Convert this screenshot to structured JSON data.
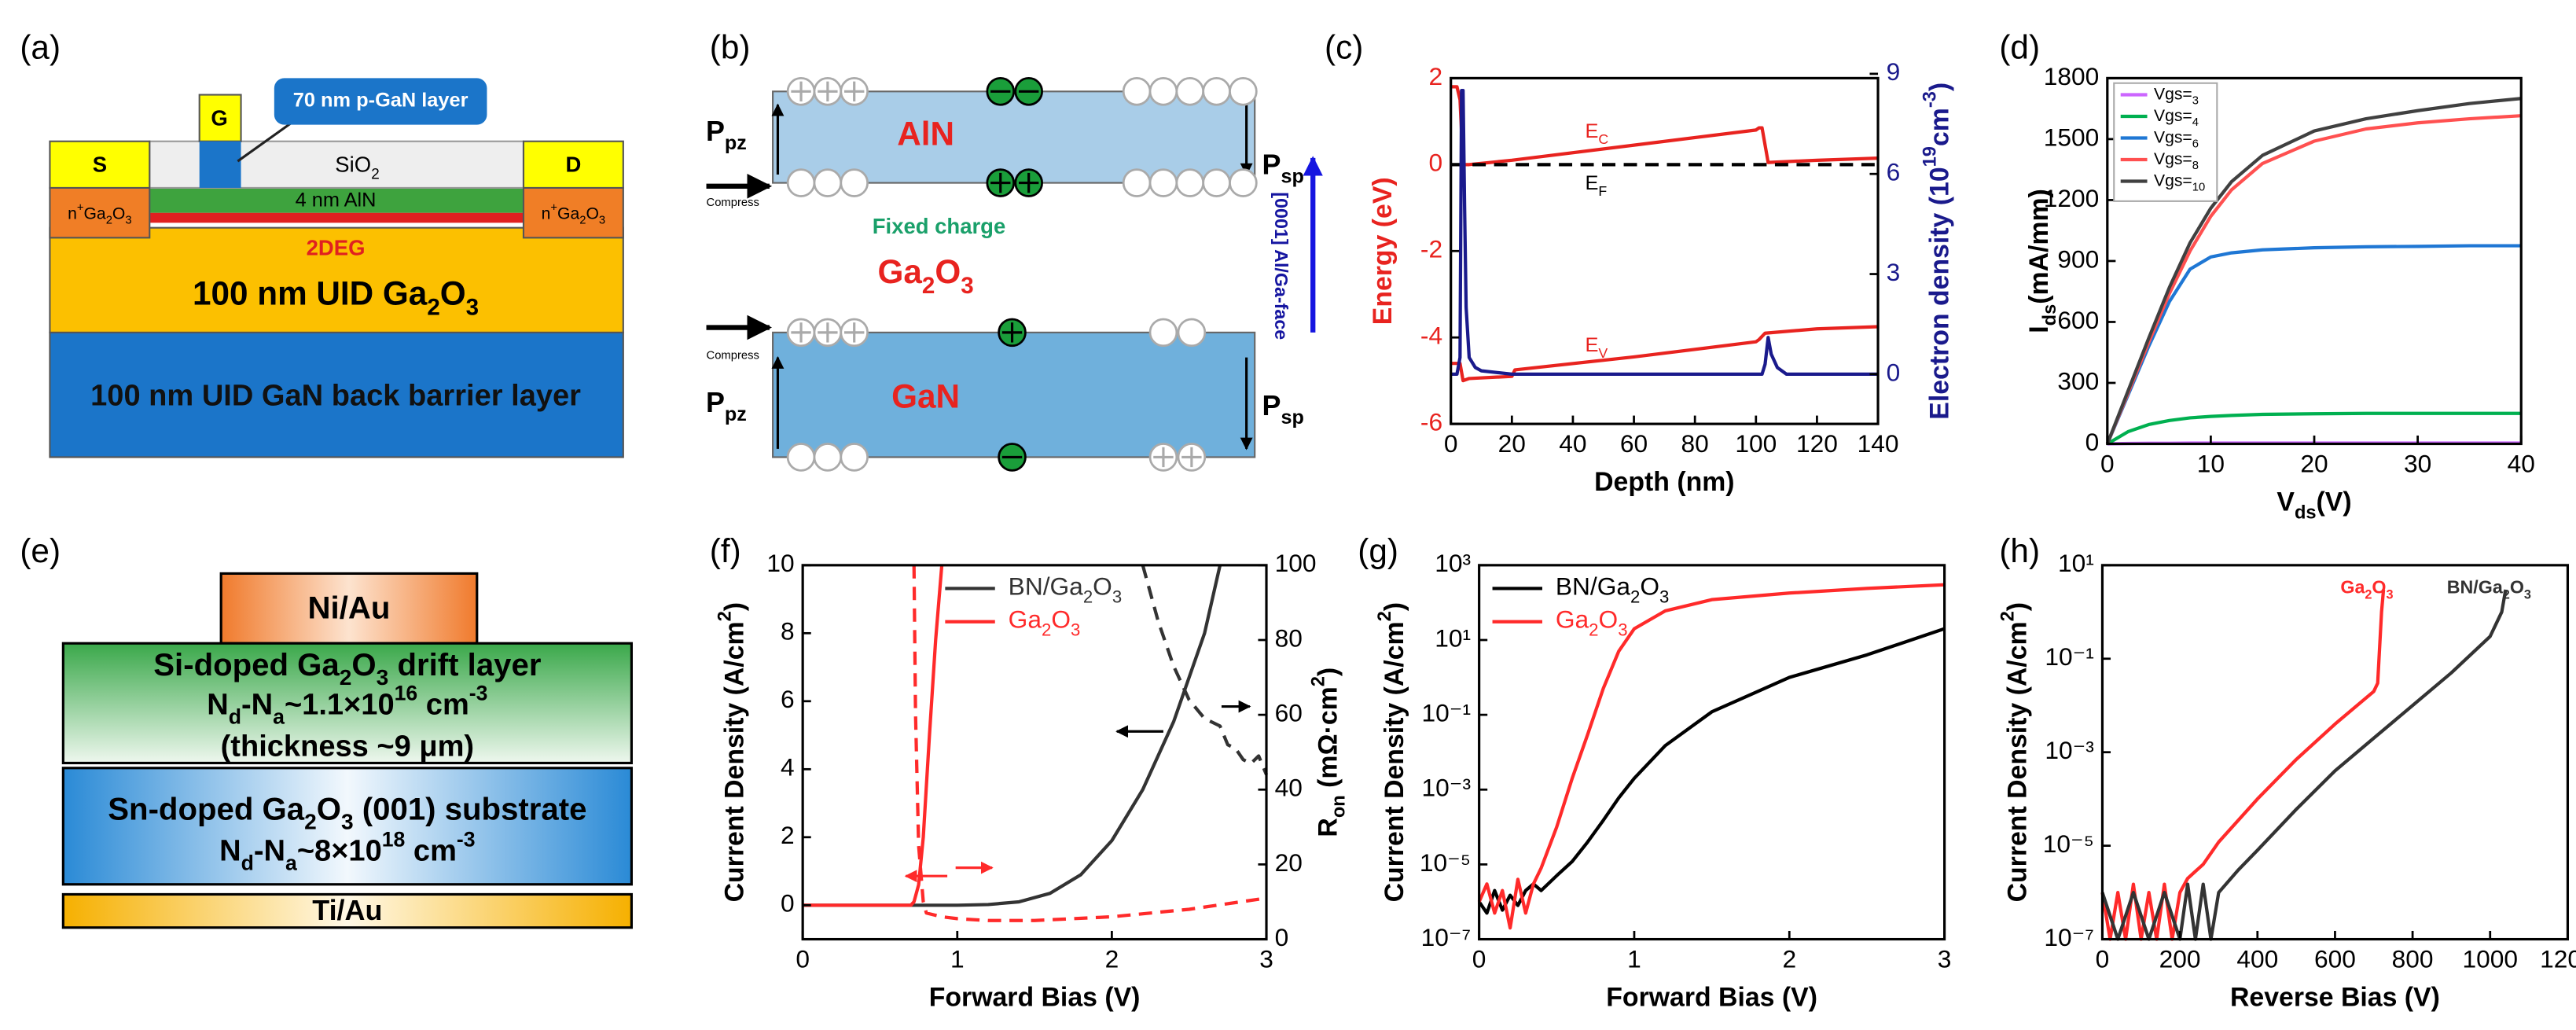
{
  "diagram_a": {
    "label": "(a)",
    "gate": "G",
    "callout": "70 nm p-GaN layer",
    "source": "S",
    "oxide": [
      "SiO",
      {
        "sub": "2"
      }
    ],
    "drain": "D",
    "contact_left": [
      "n",
      {
        "sup": "+"
      },
      "Ga",
      {
        "sub": "2"
      },
      "O",
      {
        "sub": "3"
      }
    ],
    "contact_right": [
      "n",
      {
        "sup": "+"
      },
      "Ga",
      {
        "sub": "2"
      },
      "O",
      {
        "sub": "3"
      }
    ],
    "barrier": "4 nm AlN",
    "channel": "2DEG",
    "channel_layer": [
      "100 nm  UID Ga",
      {
        "sub": "2"
      },
      "O",
      {
        "sub": "3"
      }
    ],
    "back_barrier": "100 nm UID GaN back barrier layer"
  },
  "diagram_b": {
    "label": "(b)",
    "top_layer": "AlN",
    "middle_layer": [
      "Ga",
      {
        "sub": "2"
      },
      "O",
      {
        "sub": "3"
      }
    ],
    "bottom_layer": "GaN",
    "fixed_charge": "Fixed charge",
    "compress": [
      "Compress",
      "Compress"
    ],
    "piezo": [
      [
        "P",
        {
          "sub": "pz"
        }
      ],
      [
        "P",
        {
          "sub": "pz"
        }
      ]
    ],
    "spontaneous": [
      [
        "P",
        {
          "sub": "sp"
        }
      ],
      [
        "P",
        {
          "sub": "sp"
        }
      ]
    ],
    "direction": "[0001] Al/Ga-face"
  },
  "diagram_e": {
    "label": "(e)",
    "contact_top": "Ni/Au",
    "drift_layer": [
      "Si-doped Ga",
      {
        "sub": "2"
      },
      "O",
      {
        "sub": "3"
      },
      " drift layer"
    ],
    "drift_doping": [
      "N",
      {
        "sub": "d"
      },
      "-N",
      {
        "sub": "a"
      },
      "~1.1×10",
      {
        "sup": "16"
      },
      " cm",
      {
        "sup": "-3"
      }
    ],
    "drift_thickness": "(thickness ~9 μm)",
    "substrate": [
      "Sn-doped Ga",
      {
        "sub": "2"
      },
      "O",
      {
        "sub": "3"
      },
      " (001) substrate"
    ],
    "substrate_doping": [
      "N",
      {
        "sub": "d"
      },
      "-N",
      {
        "sub": "a"
      },
      "~8×10",
      {
        "sup": "18"
      },
      " cm",
      {
        "sup": "-3"
      }
    ],
    "contact_bottom": "Ti/Au"
  },
  "chart_data": [
    {
      "type": "line",
      "label": "(c)",
      "xlabel": "Depth (nm)",
      "ylabel": "Energy (eV)",
      "y2label": [
        "Electron density (10",
        {
          "sup": "19"
        },
        "cm",
        {
          "sup": "-3"
        },
        ")"
      ],
      "xlim": [
        0,
        140
      ],
      "xticks": [
        0,
        20,
        40,
        60,
        80,
        100,
        120,
        140
      ],
      "ylim": [
        -6,
        2
      ],
      "yticks": [
        -6,
        -4,
        -2,
        0,
        2
      ],
      "y2lim": [
        -1.49,
        8.87
      ],
      "y2ticks": [
        0,
        3,
        6,
        9
      ],
      "ycolor": "#e8231f",
      "y2color": "#1a1a8c",
      "annotations": [
        [
          "E",
          {
            "sub": "C"
          }
        ],
        [
          "E",
          {
            "sub": "F"
          }
        ],
        [
          "E",
          {
            "sub": "V"
          }
        ]
      ],
      "series": [
        {
          "color": "#e8231f",
          "linestyle": "solid",
          "x": [
            0,
            2,
            3,
            4,
            6,
            20,
            60,
            100,
            101,
            102,
            104,
            120,
            140
          ],
          "values": [
            1.8,
            1.8,
            1.5,
            0,
            0,
            0.1,
            0.45,
            0.8,
            0.85,
            0.85,
            0.05,
            0.1,
            0.15
          ]
        },
        {
          "color": "#000000",
          "linestyle": "dashed",
          "x": [
            0,
            140
          ],
          "values": [
            0,
            0
          ]
        },
        {
          "color": "#e8231f",
          "linestyle": "solid",
          "x": [
            0,
            2,
            3,
            4,
            6,
            20,
            21,
            60,
            100,
            101,
            103,
            120,
            140
          ],
          "values": [
            -4.6,
            -4.6,
            -4.6,
            -5,
            -4.95,
            -4.9,
            -4.75,
            -4.45,
            -4.1,
            -4.05,
            -3.9,
            -3.8,
            -3.75
          ]
        },
        {
          "color": "#1a1a8c",
          "linestyle": "solid",
          "axis": "y2",
          "x": [
            0,
            2,
            3,
            3.5,
            4,
            4.5,
            5,
            6,
            8,
            10,
            20,
            60,
            100,
            102,
            103,
            104,
            105,
            107,
            110,
            140
          ],
          "values": [
            0,
            0,
            0.5,
            8.5,
            8.5,
            5,
            2,
            0.5,
            0.2,
            0.1,
            0,
            0,
            0,
            0,
            0.3,
            1.1,
            0.6,
            0.2,
            0,
            0
          ]
        }
      ]
    },
    {
      "type": "line",
      "label": "(d)",
      "xlabel": [
        "V",
        {
          "sub": "ds"
        },
        "(V)"
      ],
      "ylabel": [
        "I",
        {
          "sub": "ds"
        },
        "(mA/mm)"
      ],
      "legend": "upper left",
      "xlim": [
        0,
        40
      ],
      "xticks": [
        0,
        10,
        20,
        30,
        40
      ],
      "ylim": [
        0,
        1800
      ],
      "yticks": [
        0,
        300,
        600,
        900,
        1200,
        1500,
        1800
      ],
      "series": [
        {
          "name": "Vgs=3",
          "color": "#cc66ff",
          "linestyle": "solid",
          "x": [
            0,
            2,
            4,
            6,
            8,
            10,
            12,
            15,
            20,
            25,
            30,
            35,
            40
          ],
          "values": [
            0,
            2,
            3,
            3,
            4,
            4,
            4,
            4,
            4,
            4,
            4,
            4,
            4
          ]
        },
        {
          "name": "Vgs=4",
          "color": "#00b050",
          "linestyle": "solid",
          "x": [
            0,
            2,
            4,
            6,
            8,
            10,
            12,
            15,
            20,
            25,
            30,
            35,
            40
          ],
          "values": [
            0,
            60,
            95,
            115,
            128,
            135,
            140,
            145,
            148,
            150,
            150,
            150,
            150
          ]
        },
        {
          "name": "Vgs=6",
          "color": "#1f77d4",
          "linestyle": "solid",
          "x": [
            0,
            2,
            4,
            6,
            8,
            10,
            12,
            15,
            20,
            25,
            30,
            35,
            40
          ],
          "values": [
            0,
            240,
            480,
            700,
            860,
            920,
            940,
            955,
            965,
            970,
            972,
            975,
            975
          ]
        },
        {
          "name": "Vgs=8",
          "color": "#ff5050",
          "linestyle": "solid",
          "x": [
            0,
            2,
            4,
            6,
            8,
            10,
            12,
            15,
            20,
            25,
            30,
            35,
            40
          ],
          "values": [
            0,
            250,
            500,
            740,
            950,
            1120,
            1250,
            1380,
            1490,
            1550,
            1580,
            1600,
            1615
          ]
        },
        {
          "name": "Vgs=10",
          "color": "#404040",
          "linestyle": "solid",
          "x": [
            0,
            2,
            4,
            6,
            8,
            10,
            12,
            15,
            20,
            25,
            30,
            35,
            40
          ],
          "values": [
            0,
            260,
            520,
            770,
            990,
            1160,
            1290,
            1420,
            1540,
            1600,
            1640,
            1675,
            1700
          ]
        }
      ]
    },
    {
      "type": "line",
      "label": "(f)",
      "xlabel": "Forward Bias (V)",
      "ylabel": [
        "Current Density (A/cm",
        {
          "sup": "2"
        },
        ")"
      ],
      "y2label": [
        "R",
        {
          "sub": "on"
        },
        " (mΩ·cm",
        {
          "sup": "2"
        },
        ")"
      ],
      "legend": "upper right",
      "xlim": [
        0,
        3
      ],
      "xticks": [
        0,
        1,
        2,
        3
      ],
      "ylim": [
        -1,
        10
      ],
      "yticks": [
        0,
        2,
        4,
        6,
        8,
        10
      ],
      "y2lim": [
        0,
        100
      ],
      "y2ticks": [
        0,
        20,
        40,
        60,
        80,
        100
      ],
      "series": [
        {
          "name": "BN/Ga2O3",
          "color": "#333333",
          "linestyle": "solid",
          "x": [
            0,
            1,
            1.2,
            1.4,
            1.6,
            1.8,
            2.0,
            2.2,
            2.4,
            2.6,
            2.7
          ],
          "values": [
            0,
            0,
            0.02,
            0.1,
            0.35,
            0.9,
            1.9,
            3.4,
            5.4,
            8.0,
            10
          ]
        },
        {
          "name": "Ga2O3",
          "color": "#ff2a2a",
          "linestyle": "solid",
          "x": [
            0,
            0.7,
            0.72,
            0.75,
            0.78,
            0.82,
            0.86,
            0.9
          ],
          "values": [
            0,
            0,
            0.1,
            0.6,
            2,
            5,
            7.8,
            10
          ]
        },
        {
          "color": "#ff2a2a",
          "linestyle": "dashed",
          "axis": "y2",
          "x": [
            0.72,
            0.73,
            0.75,
            0.78,
            0.8,
            0.9,
            1.0,
            1.2,
            1.5,
            2.0,
            2.5,
            3.0
          ],
          "values": [
            100,
            60,
            25,
            10,
            7,
            6,
            5.5,
            5,
            5,
            6,
            8,
            11
          ]
        },
        {
          "color": "#333333",
          "linestyle": "dashed",
          "axis": "y2",
          "x": [
            2.2,
            2.3,
            2.4,
            2.5,
            2.6,
            2.7,
            2.75,
            2.8,
            2.85,
            2.9,
            2.95,
            3.0
          ],
          "values": [
            100,
            85,
            73,
            64,
            59,
            57,
            52,
            51,
            48,
            47,
            49,
            44
          ]
        }
      ]
    },
    {
      "type": "line",
      "label": "(g)",
      "xlabel": "Forward Bias (V)",
      "ylabel": [
        "Current Density (A/cm",
        {
          "sup": "2"
        },
        ")"
      ],
      "legend": "upper left",
      "ylog": true,
      "xlim": [
        0,
        3
      ],
      "xticks": [
        0,
        1,
        2,
        3
      ],
      "ylim": [
        1e-07,
        1000
      ],
      "yticks": [
        {
          "value": 1e-07,
          "label": "10⁻⁷"
        },
        {
          "value": 1e-05,
          "label": "10⁻⁵"
        },
        {
          "value": 0.001,
          "label": "10⁻³"
        },
        {
          "value": 0.1,
          "label": "10⁻¹"
        },
        {
          "value": 10,
          "label": "10¹"
        },
        {
          "value": 1000,
          "label": "10³"
        }
      ],
      "series": [
        {
          "name": "BN/Ga2O3",
          "color": "#000000",
          "linestyle": "solid",
          "x": [
            0,
            0.05,
            0.1,
            0.15,
            0.2,
            0.25,
            0.3,
            0.35,
            0.4,
            0.5,
            0.6,
            0.7,
            0.8,
            0.9,
            1.0,
            1.2,
            1.5,
            2.0,
            2.5,
            3.0
          ],
          "values": [
            1e-06,
            5e-07,
            2e-06,
            6e-07,
            1.5e-06,
            8e-07,
            2e-06,
            3e-06,
            2e-06,
            5e-06,
            1.2e-05,
            4e-05,
            0.00015,
            0.0006,
            0.002,
            0.015,
            0.12,
            1.0,
            4,
            20
          ]
        },
        {
          "name": "Ga2O3",
          "color": "#ff2a2a",
          "linestyle": "solid",
          "x": [
            0,
            0.05,
            0.1,
            0.15,
            0.2,
            0.25,
            0.3,
            0.35,
            0.4,
            0.5,
            0.6,
            0.7,
            0.8,
            0.9,
            1.0,
            1.2,
            1.5,
            2.0,
            2.5,
            3.0
          ],
          "values": [
            1e-06,
            3e-06,
            5e-07,
            2e-06,
            2e-07,
            4e-06,
            5e-07,
            3e-06,
            8e-06,
            0.0001,
            0.002,
            0.03,
            0.5,
            5,
            20,
            60,
            120,
            180,
            240,
            300
          ]
        }
      ]
    },
    {
      "type": "line",
      "label": "(h)",
      "xlabel": "Reverse Bias (V)",
      "ylabel": [
        "Current Density (A/cm",
        {
          "sup": "2"
        },
        ")"
      ],
      "legend": "inline",
      "ylog": true,
      "xlim": [
        0,
        1200
      ],
      "xticks": [
        0,
        200,
        400,
        600,
        800,
        1000,
        1200
      ],
      "ylim": [
        1e-07,
        10
      ],
      "yticks": [
        {
          "value": 1e-07,
          "label": "10⁻⁷"
        },
        {
          "value": 1e-05,
          "label": "10⁻⁵"
        },
        {
          "value": 0.001,
          "label": "10⁻³"
        },
        {
          "value": 0.1,
          "label": "10⁻¹"
        },
        {
          "value": 10,
          "label": "10¹"
        }
      ],
      "series": [
        {
          "name": "Ga2O3",
          "color": "#ff2a2a",
          "linestyle": "solid",
          "x": [
            0,
            20,
            40,
            60,
            80,
            100,
            120,
            140,
            160,
            180,
            200,
            220,
            260,
            300,
            400,
            500,
            600,
            700,
            710,
            720,
            725
          ],
          "values": [
            1e-06,
            1e-07,
            1e-06,
            1e-07,
            1.5e-06,
            1e-07,
            1e-06,
            1e-07,
            1.5e-06,
            1e-07,
            1e-06,
            2e-06,
            4e-06,
            1.2e-05,
            0.0001,
            0.0007,
            0.004,
            0.02,
            0.03,
            1,
            3
          ]
        },
        {
          "name": "BN/Ga2O3",
          "color": "#333333",
          "linestyle": "solid",
          "x": [
            0,
            40,
            80,
            120,
            160,
            200,
            220,
            240,
            260,
            280,
            300,
            350,
            400,
            500,
            600,
            700,
            800,
            900,
            1000,
            1030,
            1040
          ],
          "values": [
            1e-06,
            1e-07,
            1e-06,
            1e-07,
            1e-06,
            1e-07,
            1.5e-06,
            1e-07,
            1.5e-06,
            1e-07,
            1e-06,
            3e-06,
            8e-06,
            6e-05,
            0.0004,
            0.002,
            0.01,
            0.05,
            0.3,
            1,
            3
          ]
        }
      ]
    }
  ]
}
